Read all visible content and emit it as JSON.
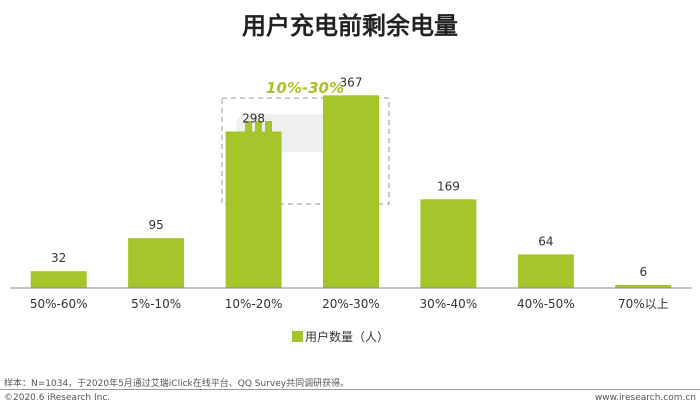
{
  "chart_data": {
    "type": "bar",
    "title": "用户充电前剩余电量",
    "categories": [
      "50%-60%",
      "5%-10%",
      "10%-20%",
      "20%-30%",
      "30%-40%",
      "40%-50%",
      "70%以上"
    ],
    "series": [
      {
        "name": "用户数量（人）",
        "values": [
          32,
          95,
          298,
          367,
          169,
          64,
          6
        ]
      }
    ],
    "ylim": [
      0,
      400
    ],
    "grid": false,
    "legend_position": "bottom",
    "highlight": {
      "label": "10%-30%",
      "categories": [
        "10%-20%",
        "20%-30%"
      ]
    }
  },
  "colors": {
    "bar": "#a6c52a",
    "highlight_text": "#a6c52a",
    "battery_body": "#efefef",
    "battery_cell": "#a6c52a",
    "axis": "#888888",
    "dash_box": "#aaaaaa"
  },
  "icons": [
    "battery-icon"
  ],
  "footer": {
    "note": "样本：N=1034，于2020年5月通过艾瑞iClick在线平台、QQ Survey共同调研获得。",
    "copyright": "©2020.6 iResearch Inc.",
    "site": "www.iresearch.com.cn"
  }
}
